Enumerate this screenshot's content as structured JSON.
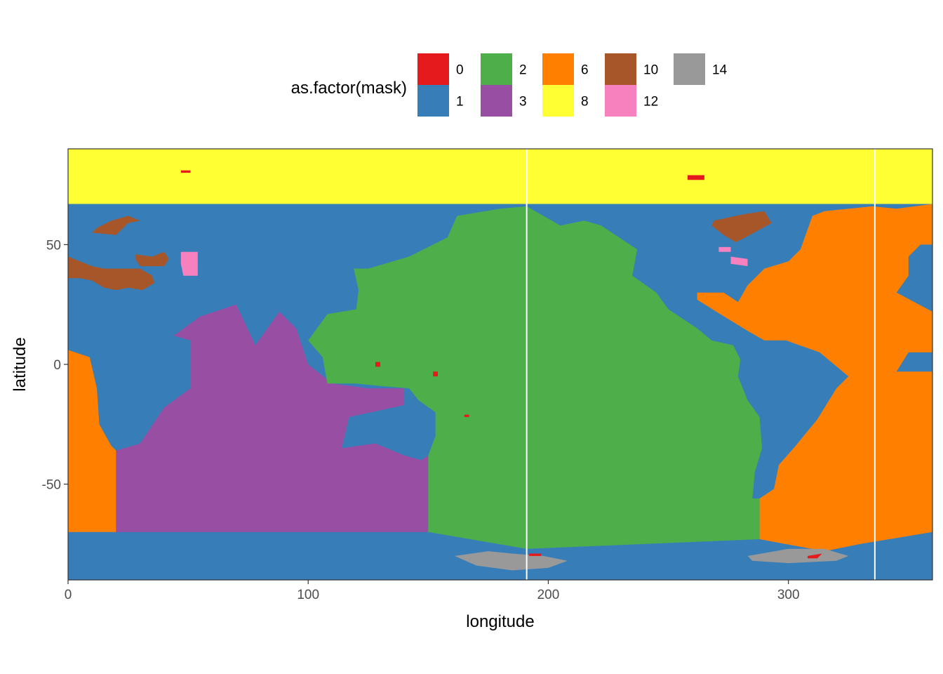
{
  "chart_data": {
    "type": "heatmap",
    "title": "",
    "xlabel": "longitude",
    "ylabel": "latitude",
    "xlim": [
      0,
      360
    ],
    "ylim": [
      -90,
      90
    ],
    "x_ticks": [
      {
        "value": 0,
        "label": "0"
      },
      {
        "value": 100,
        "label": "100"
      },
      {
        "value": 200,
        "label": "200"
      },
      {
        "value": 300,
        "label": "300"
      }
    ],
    "y_ticks": [
      {
        "value": 50,
        "label": "50"
      },
      {
        "value": 0,
        "label": "0"
      },
      {
        "value": -50,
        "label": "-50"
      }
    ],
    "grid": false,
    "legend": {
      "title": "as.factor(mask)",
      "position": "top",
      "entries": [
        {
          "label": "0",
          "color": "#e41a1c"
        },
        {
          "label": "1",
          "color": "#377eb8"
        },
        {
          "label": "2",
          "color": "#4daf4a"
        },
        {
          "label": "3",
          "color": "#984ea3"
        },
        {
          "label": "6",
          "color": "#ff7f00"
        },
        {
          "label": "8",
          "color": "#ffff33"
        },
        {
          "label": "10",
          "color": "#a65628"
        },
        {
          "label": "12",
          "color": "#f781bf"
        },
        {
          "label": "14",
          "color": "#999999"
        }
      ]
    },
    "vertical_lines_x": [
      191,
      336
    ],
    "regions": [
      {
        "mask": "8",
        "polygon": [
          [
            0,
            90
          ],
          [
            360,
            90
          ],
          [
            360,
            67
          ],
          [
            0,
            67
          ]
        ]
      },
      {
        "mask": "1",
        "polygon": [
          [
            0,
            67
          ],
          [
            360,
            67
          ],
          [
            360,
            -90
          ],
          [
            0,
            -90
          ]
        ]
      },
      {
        "mask": "6",
        "polygon": [
          [
            0,
            6
          ],
          [
            9,
            3
          ],
          [
            12,
            -10
          ],
          [
            13,
            -25
          ],
          [
            18,
            -34
          ],
          [
            20,
            -36
          ],
          [
            20,
            -70
          ],
          [
            0,
            -70
          ]
        ]
      },
      {
        "mask": "3",
        "polygon": [
          [
            20,
            -36
          ],
          [
            30,
            -33
          ],
          [
            40,
            -18
          ],
          [
            51,
            -10
          ],
          [
            51,
            10
          ],
          [
            44,
            12
          ],
          [
            55,
            20
          ],
          [
            70,
            25
          ],
          [
            78,
            8
          ],
          [
            88,
            22
          ],
          [
            95,
            15
          ],
          [
            100,
            0
          ],
          [
            110,
            -8
          ],
          [
            125,
            -10
          ],
          [
            140,
            -10
          ],
          [
            140,
            -17
          ],
          [
            117,
            -22
          ],
          [
            114,
            -35
          ],
          [
            128,
            -33
          ],
          [
            140,
            -38
          ],
          [
            147,
            -40
          ],
          [
            150,
            -38
          ],
          [
            150,
            -70
          ],
          [
            20,
            -70
          ]
        ]
      },
      {
        "mask": "2",
        "polygon": [
          [
            150,
            -70
          ],
          [
            150,
            -38
          ],
          [
            153,
            -30
          ],
          [
            153,
            -20
          ],
          [
            146,
            -15
          ],
          [
            142,
            -10
          ],
          [
            130,
            -9
          ],
          [
            120,
            -8
          ],
          [
            108,
            -8
          ],
          [
            106,
            3
          ],
          [
            100,
            10
          ],
          [
            108,
            21
          ],
          [
            120,
            23
          ],
          [
            121,
            31
          ],
          [
            119,
            40
          ],
          [
            125,
            40
          ],
          [
            142,
            45
          ],
          [
            158,
            53
          ],
          [
            162,
            62
          ],
          [
            180,
            65
          ],
          [
            191,
            66
          ],
          [
            205,
            58
          ],
          [
            215,
            60
          ],
          [
            222,
            58
          ],
          [
            237,
            48
          ],
          [
            235,
            37
          ],
          [
            245,
            30
          ],
          [
            250,
            23
          ],
          [
            262,
            15
          ],
          [
            268,
            10
          ],
          [
            277,
            8
          ],
          [
            280,
            2
          ],
          [
            279,
            -5
          ],
          [
            283,
            -15
          ],
          [
            288,
            -22
          ],
          [
            289,
            -35
          ],
          [
            286,
            -45
          ],
          [
            285,
            -56
          ],
          [
            288,
            -56
          ],
          [
            288,
            -73
          ],
          [
            191,
            -77
          ],
          [
            150,
            -70
          ]
        ]
      },
      {
        "mask": "6",
        "polygon": [
          [
            288,
            -73
          ],
          [
            288,
            -56
          ],
          [
            294,
            -52
          ],
          [
            296,
            -42
          ],
          [
            303,
            -34
          ],
          [
            312,
            -23
          ],
          [
            320,
            -10
          ],
          [
            325,
            -5
          ],
          [
            313,
            5
          ],
          [
            299,
            10
          ],
          [
            290,
            10
          ],
          [
            283,
            14
          ],
          [
            270,
            22
          ],
          [
            262,
            27
          ],
          [
            262,
            30
          ],
          [
            273,
            30
          ],
          [
            279,
            26
          ],
          [
            283,
            33
          ],
          [
            290,
            40
          ],
          [
            300,
            43
          ],
          [
            305,
            48
          ],
          [
            310,
            62
          ],
          [
            315,
            64
          ],
          [
            335,
            66
          ],
          [
            345,
            65
          ],
          [
            360,
            67
          ],
          [
            360,
            -70
          ],
          [
            330,
            -75
          ],
          [
            315,
            -78
          ],
          [
            288,
            -73
          ]
        ]
      },
      {
        "mask": "1",
        "polygon": [
          [
            345,
            -3
          ],
          [
            350,
            5
          ],
          [
            360,
            5
          ],
          [
            360,
            22
          ],
          [
            345,
            30
          ],
          [
            350,
            37
          ],
          [
            350,
            45
          ],
          [
            355,
            50
          ],
          [
            360,
            50
          ],
          [
            360,
            -3
          ]
        ]
      },
      {
        "mask": "10",
        "polygon": [
          [
            0,
            45
          ],
          [
            5,
            43
          ],
          [
            10,
            41
          ],
          [
            15,
            40
          ],
          [
            20,
            40
          ],
          [
            25,
            40
          ],
          [
            30,
            40
          ],
          [
            35,
            37
          ],
          [
            36,
            34
          ],
          [
            31,
            31
          ],
          [
            25,
            32
          ],
          [
            20,
            31
          ],
          [
            15,
            32
          ],
          [
            10,
            35
          ],
          [
            5,
            36
          ],
          [
            0,
            36
          ]
        ]
      },
      {
        "mask": "10",
        "polygon": [
          [
            28,
            46
          ],
          [
            35,
            45
          ],
          [
            40,
            47
          ],
          [
            42,
            44
          ],
          [
            40,
            41
          ],
          [
            30,
            41
          ],
          [
            28,
            44
          ]
        ]
      },
      {
        "mask": "10",
        "polygon": [
          [
            10,
            55
          ],
          [
            20,
            54
          ],
          [
            25,
            59
          ],
          [
            30,
            60
          ],
          [
            25,
            62
          ],
          [
            18,
            60
          ],
          [
            12,
            57
          ]
        ]
      },
      {
        "mask": "10",
        "polygon": [
          [
            269,
            60
          ],
          [
            278,
            62
          ],
          [
            283,
            63
          ],
          [
            290,
            64
          ],
          [
            293,
            59
          ],
          [
            282,
            53
          ],
          [
            278,
            51
          ],
          [
            273,
            54
          ],
          [
            268,
            58
          ]
        ]
      },
      {
        "mask": "12",
        "polygon": [
          [
            47,
            47
          ],
          [
            54,
            47
          ],
          [
            54,
            37
          ],
          [
            48,
            37
          ],
          [
            47,
            42
          ]
        ]
      },
      {
        "mask": "12",
        "polygon": [
          [
            271,
            49
          ],
          [
            276,
            49
          ],
          [
            276,
            47
          ],
          [
            271,
            47
          ]
        ]
      },
      {
        "mask": "12",
        "polygon": [
          [
            276,
            45
          ],
          [
            283,
            44
          ],
          [
            283,
            41
          ],
          [
            276,
            42
          ]
        ]
      },
      {
        "mask": "14",
        "polygon": [
          [
            161,
            -80
          ],
          [
            175,
            -78
          ],
          [
            185,
            -79
          ],
          [
            198,
            -80
          ],
          [
            208,
            -82
          ],
          [
            200,
            -85
          ],
          [
            185,
            -86
          ],
          [
            170,
            -84
          ]
        ]
      },
      {
        "mask": "14",
        "polygon": [
          [
            283,
            -80
          ],
          [
            300,
            -77
          ],
          [
            315,
            -77
          ],
          [
            325,
            -80
          ],
          [
            320,
            -82
          ],
          [
            300,
            -83
          ],
          [
            285,
            -82
          ]
        ]
      },
      {
        "mask": "0",
        "polygon": [
          [
            47,
            81
          ],
          [
            51,
            81
          ],
          [
            51,
            80
          ],
          [
            47,
            80
          ]
        ]
      },
      {
        "mask": "0",
        "polygon": [
          [
            258,
            79
          ],
          [
            265,
            79
          ],
          [
            265,
            77
          ],
          [
            258,
            77
          ]
        ]
      },
      {
        "mask": "0",
        "polygon": [
          [
            308,
            -80
          ],
          [
            314,
            -79
          ],
          [
            312,
            -81
          ],
          [
            308,
            -81
          ]
        ]
      },
      {
        "mask": "0",
        "polygon": [
          [
            192,
            -79
          ],
          [
            197,
            -79
          ],
          [
            197,
            -80
          ],
          [
            192,
            -80
          ]
        ]
      },
      {
        "mask": "0",
        "polygon": [
          [
            165,
            -21
          ],
          [
            167,
            -21
          ],
          [
            167,
            -22
          ],
          [
            165,
            -22
          ]
        ]
      },
      {
        "mask": "0",
        "polygon": [
          [
            128,
            1
          ],
          [
            130,
            1
          ],
          [
            130,
            -1
          ],
          [
            128,
            -1
          ]
        ]
      },
      {
        "mask": "0",
        "polygon": [
          [
            152,
            -3
          ],
          [
            154,
            -3
          ],
          [
            154,
            -5
          ],
          [
            152,
            -5
          ]
        ]
      }
    ]
  }
}
